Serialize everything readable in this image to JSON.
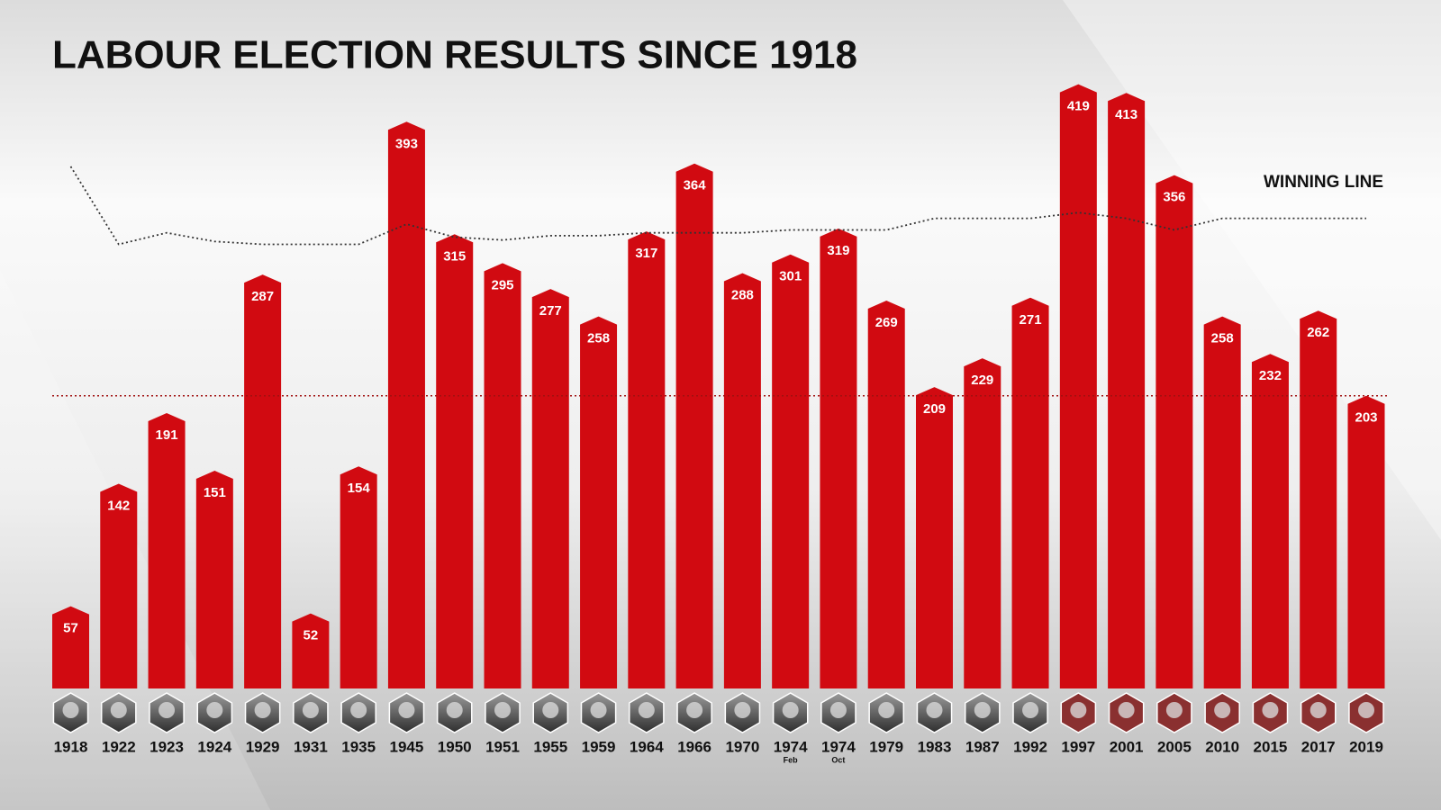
{
  "chart_data": {
    "type": "bar",
    "title": "LABOUR ELECTION RESULTS SINCE 1918",
    "categories": [
      "1918",
      "1922",
      "1923",
      "1924",
      "1929",
      "1931",
      "1935",
      "1945",
      "1950",
      "1951",
      "1955",
      "1959",
      "1964",
      "1966",
      "1970",
      "1974",
      "1974",
      "1979",
      "1983",
      "1987",
      "1992",
      "1997",
      "2001",
      "2005",
      "2010",
      "2015",
      "2017",
      "2019"
    ],
    "category_notes": [
      null,
      null,
      null,
      null,
      null,
      null,
      null,
      null,
      null,
      null,
      null,
      null,
      null,
      null,
      null,
      "Feb",
      "Oct",
      null,
      null,
      null,
      null,
      null,
      null,
      null,
      null,
      null,
      null,
      null
    ],
    "values": [
      57,
      142,
      191,
      151,
      287,
      52,
      154,
      393,
      315,
      295,
      277,
      258,
      317,
      364,
      288,
      301,
      319,
      269,
      209,
      229,
      271,
      419,
      413,
      356,
      258,
      232,
      262,
      203
    ],
    "color": "#d10a11",
    "ylim": [
      0,
      440
    ],
    "winning_line": {
      "label": "WINNING LINE",
      "color": "#333333",
      "values": [
        362,
        308,
        316,
        310,
        308,
        308,
        308,
        322,
        313,
        311,
        314,
        314,
        316,
        316,
        316,
        318,
        318,
        318,
        326,
        326,
        326,
        330,
        326,
        318,
        326,
        326,
        326,
        326
      ]
    },
    "reference_line": {
      "value": 203,
      "color": "#a01010"
    }
  }
}
